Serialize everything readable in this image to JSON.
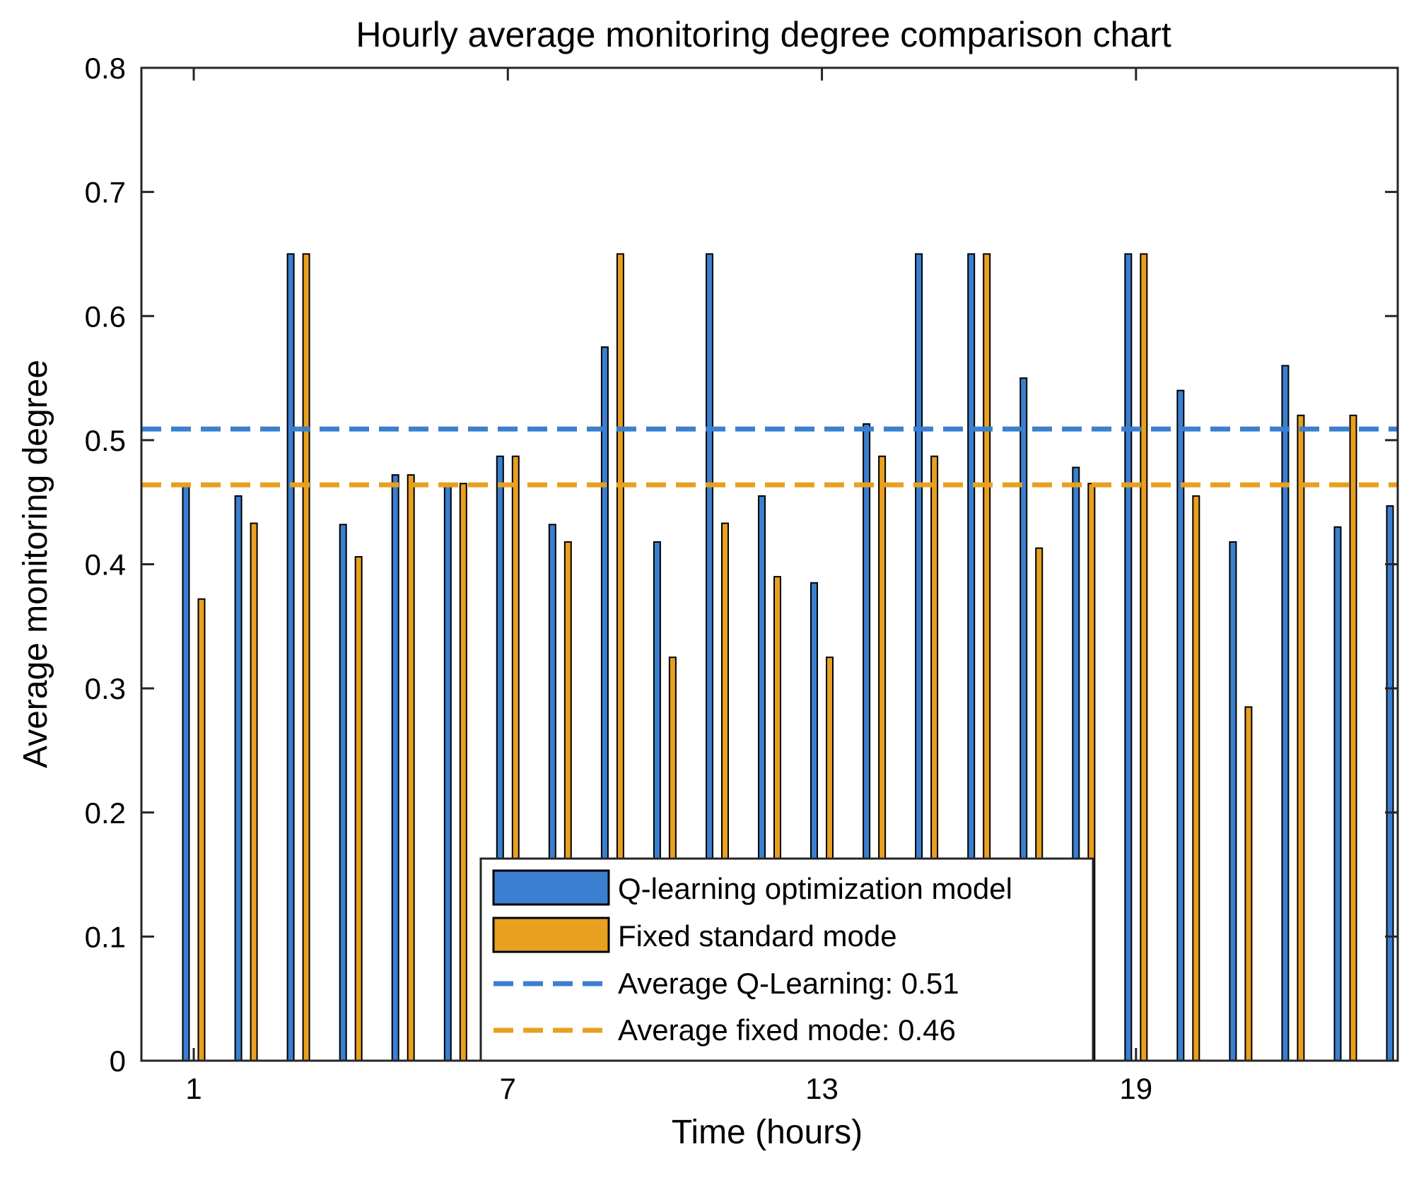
{
  "chart_data": {
    "type": "bar",
    "title": "Hourly average monitoring degree comparison chart",
    "xlabel": "Time (hours)",
    "ylabel": "Average monitoring degree",
    "xlim": [
      0,
      24
    ],
    "ylim": [
      0,
      0.8
    ],
    "xticks": [
      1,
      7,
      13,
      19
    ],
    "yticks": [
      0,
      0.1,
      0.2,
      0.3,
      0.4,
      0.5,
      0.6,
      0.7,
      0.8
    ],
    "ytick_labels": [
      "0",
      "0.1",
      "0.2",
      "0.3",
      "0.4",
      "0.5",
      "0.6",
      "0.7",
      "0.8"
    ],
    "categories": [
      1,
      2,
      3,
      4,
      5,
      6,
      7,
      8,
      9,
      10,
      11,
      12,
      13,
      14,
      15,
      16,
      17,
      18,
      19,
      20,
      21,
      22,
      23,
      24
    ],
    "series": [
      {
        "name": "Q-learning optimization model",
        "color": "#3a7fd0",
        "values": [
          0.465,
          0.455,
          0.65,
          0.432,
          0.472,
          0.465,
          0.487,
          0.432,
          0.575,
          0.418,
          0.65,
          0.455,
          0.385,
          0.513,
          0.65,
          0.65,
          0.55,
          0.478,
          0.65,
          0.54,
          0.418,
          0.56,
          0.43,
          0.447
        ]
      },
      {
        "name": "Fixed standard mode",
        "color": "#e8a020",
        "values": [
          0.372,
          0.433,
          0.65,
          0.406,
          0.472,
          0.465,
          0.487,
          0.418,
          0.65,
          0.325,
          0.433,
          0.39,
          0.325,
          0.487,
          0.487,
          0.65,
          0.413,
          0.465,
          0.65,
          0.455,
          0.285,
          0.52,
          0.52,
          null
        ]
      }
    ],
    "reference_lines": [
      {
        "name": "Average Q-Learning: 0.51",
        "value": 0.509,
        "color": "#3a7fd0"
      },
      {
        "name": "Average fixed mode: 0.46",
        "value": 0.464,
        "color": "#e8a020"
      }
    ],
    "legend_location": "bottom-center",
    "grid": false
  }
}
